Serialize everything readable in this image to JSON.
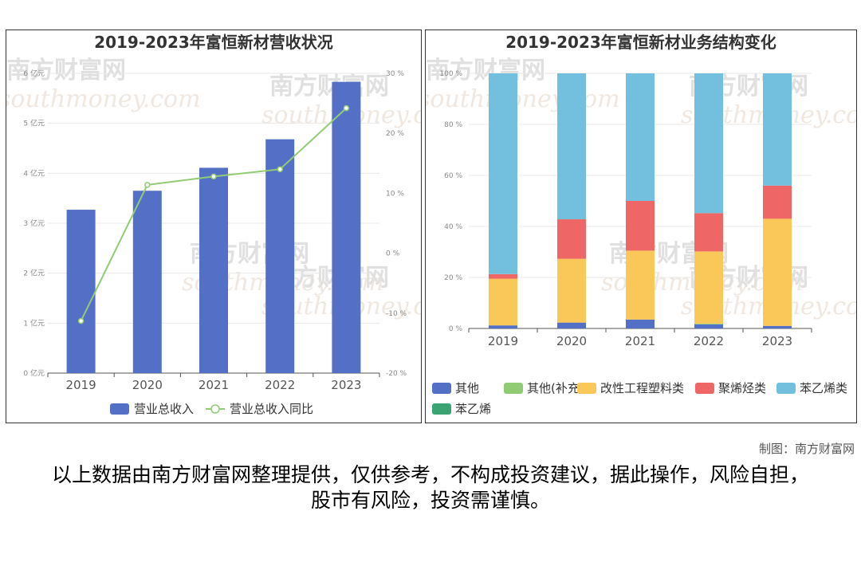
{
  "chart_data": [
    {
      "type": "bar",
      "title": "2019-2023年富恒新材营收状况",
      "categories": [
        "2019",
        "2020",
        "2021",
        "2022",
        "2023"
      ],
      "series": [
        {
          "name": "营业总收入",
          "type": "bar",
          "axis": "left",
          "values": [
            3.27,
            3.65,
            4.11,
            4.68,
            5.83
          ],
          "color": "#5470c6"
        },
        {
          "name": "营业总收入同比",
          "type": "line",
          "axis": "right",
          "values": [
            -11.3,
            11.4,
            12.8,
            14.0,
            24.2
          ],
          "color": "#91cc75"
        }
      ],
      "ylim": [
        0,
        6
      ],
      "yticks": [
        "0 亿元",
        "1 亿元",
        "2 亿元",
        "3 亿元",
        "4 亿元",
        "5 亿元",
        "6 亿元"
      ],
      "y2lim": [
        -20,
        30
      ],
      "y2ticks": [
        "-20 %",
        "-10 %",
        "0 %",
        "10 %",
        "20 %",
        "30 %"
      ],
      "grid": true,
      "legend": "bottom-center"
    },
    {
      "type": "bar",
      "stacked": true,
      "title": "2019-2023年富恒新材业务结构变化",
      "categories": [
        "2019",
        "2020",
        "2021",
        "2022",
        "2023"
      ],
      "series": [
        {
          "name": "其他",
          "values": [
            1.2,
            2.3,
            3.5,
            1.6,
            1.0
          ],
          "color": "#5470c6"
        },
        {
          "name": "其他(补充)",
          "values": [
            0,
            0,
            0,
            0.3,
            0
          ],
          "color": "#91cc75"
        },
        {
          "name": "改性工程塑料类",
          "values": [
            18.3,
            25.0,
            27.0,
            28.3,
            42.0
          ],
          "color": "#fac858"
        },
        {
          "name": "聚烯烃类",
          "values": [
            1.8,
            15.5,
            19.5,
            15.0,
            13.0
          ],
          "color": "#ee6666"
        },
        {
          "name": "苯乙烯类",
          "values": [
            78.7,
            57.2,
            50.0,
            54.8,
            44.0
          ],
          "color": "#73c0de"
        },
        {
          "name": "苯乙烯",
          "values": [
            0,
            0,
            0,
            0,
            0
          ],
          "color": "#3ba272"
        }
      ],
      "ylim": [
        0,
        100
      ],
      "yticks": [
        "0 %",
        "20 %",
        "40 %",
        "60 %",
        "80 %",
        "100 %"
      ],
      "grid": true,
      "legend": "bottom"
    }
  ],
  "watermark": {
    "cn": "南方财富网",
    "en": "southmoney.com"
  },
  "credit": "制图：南方财富网",
  "disclaimer": "以上数据由南方财富网整理提供，仅供参考，不构成投资建议，据此操作，风险自担，股市有风险，投资需谨慎。"
}
